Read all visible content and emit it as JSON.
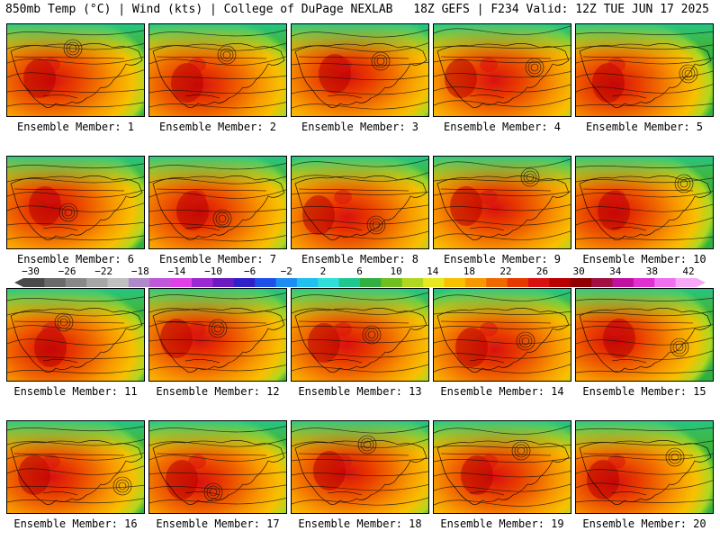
{
  "header": {
    "left": "850mb Temp (°C) | Wind (kts) | College of DuPage NEXLAB",
    "right": "18Z GEFS | F234 Valid: 12Z TUE JUN 17 2025"
  },
  "panels": [
    {
      "label": "Ensemble Member: 1"
    },
    {
      "label": "Ensemble Member: 2"
    },
    {
      "label": "Ensemble Member: 3"
    },
    {
      "label": "Ensemble Member: 4"
    },
    {
      "label": "Ensemble Member: 5"
    },
    {
      "label": "Ensemble Member: 6"
    },
    {
      "label": "Ensemble Member: 7"
    },
    {
      "label": "Ensemble Member: 8"
    },
    {
      "label": "Ensemble Member: 9"
    },
    {
      "label": "Ensemble Member: 10"
    },
    {
      "label": "Ensemble Member: 11"
    },
    {
      "label": "Ensemble Member: 12"
    },
    {
      "label": "Ensemble Member: 13"
    },
    {
      "label": "Ensemble Member: 14"
    },
    {
      "label": "Ensemble Member: 15"
    },
    {
      "label": "Ensemble Member: 16"
    },
    {
      "label": "Ensemble Member: 17"
    },
    {
      "label": "Ensemble Member: 18"
    },
    {
      "label": "Ensemble Member: 19"
    },
    {
      "label": "Ensemble Member: 20"
    }
  ],
  "colorbar": {
    "ticks": [
      "−30",
      "−26",
      "−22",
      "−18",
      "−14",
      "−10",
      "−6",
      "−2",
      "2",
      "6",
      "10",
      "14",
      "18",
      "22",
      "26",
      "30",
      "34",
      "38",
      "42"
    ],
    "colors": [
      "#4a4a4a",
      "#6a6a6a",
      "#888888",
      "#a6a6a6",
      "#c0c0c0",
      "#b08ac8",
      "#c058d8",
      "#e040e8",
      "#9a2ad0",
      "#6a1ac0",
      "#3020c8",
      "#1e50e8",
      "#1e8cf0",
      "#20c0f0",
      "#30e0d8",
      "#20c890",
      "#30b040",
      "#70c020",
      "#b0d820",
      "#e8e820",
      "#f8c000",
      "#f89800",
      "#f06800",
      "#e83800",
      "#d81010",
      "#b80000",
      "#900000",
      "#a01040",
      "#c010a0",
      "#e030d0",
      "#f070f0",
      "#f8a8f8"
    ]
  }
}
